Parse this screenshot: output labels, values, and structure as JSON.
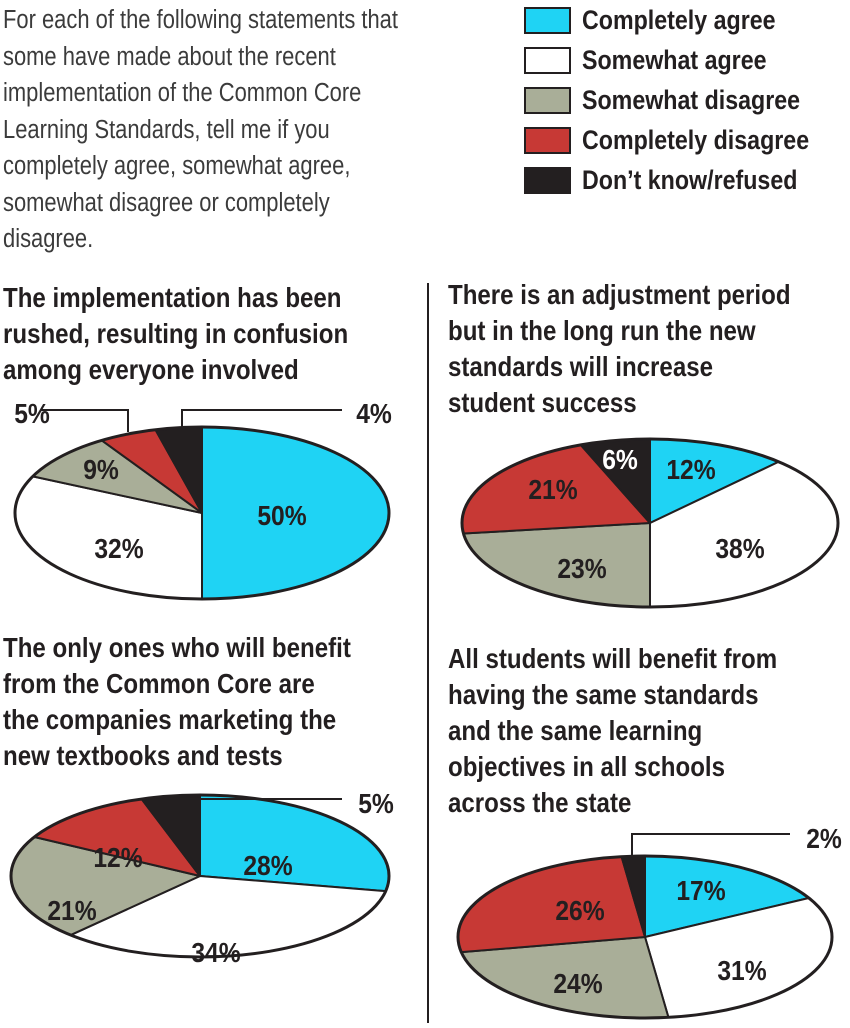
{
  "intro_lines": [
    "For each of the following statements that",
    "some have made about the recent",
    "implementation of the Common Core",
    "Learning Standards, tell me if you",
    "completely agree, somewhat agree,",
    "somewhat disagree or completely",
    "disagree."
  ],
  "legend": [
    {
      "label": "Completely agree",
      "color": "#1fd3f4"
    },
    {
      "label": "Somewhat agree",
      "color": "#ffffff"
    },
    {
      "label": "Somewhat disagree",
      "color": "#a9ae98"
    },
    {
      "label": "Completely disagree",
      "color": "#c73935"
    },
    {
      "label": "Don’t know/refused",
      "color": "#231f20"
    }
  ],
  "chart_data": [
    {
      "type": "pie",
      "title_lines": [
        "The implementation has been",
        "rushed, resulting in confusion",
        "among everyone involved"
      ],
      "categories": [
        "Completely agree",
        "Somewhat agree",
        "Somewhat disagree",
        "Completely disagree",
        "Don’t know/refused"
      ],
      "values": [
        50,
        32,
        9,
        5,
        4
      ],
      "labels": [
        "50%",
        "32%",
        "9%",
        "5%",
        "4%"
      ]
    },
    {
      "type": "pie",
      "title_lines": [
        "There is an adjustment period",
        "but in the long run the new",
        "standards will increase",
        "student success"
      ],
      "categories": [
        "Completely agree",
        "Somewhat agree",
        "Somewhat disagree",
        "Completely disagree",
        "Don’t know/refused"
      ],
      "values": [
        12,
        38,
        23,
        21,
        6
      ],
      "labels": [
        "12%",
        "38%",
        "23%",
        "21%",
        "6%"
      ]
    },
    {
      "type": "pie",
      "title_lines": [
        "The only ones who will benefit",
        "from the Common Core are",
        "the companies marketing the",
        "new textbooks and tests"
      ],
      "categories": [
        "Completely agree",
        "Somewhat agree",
        "Somewhat disagree",
        "Completely disagree",
        "Don’t know/refused"
      ],
      "values": [
        28,
        34,
        21,
        12,
        5
      ],
      "labels": [
        "28%",
        "34%",
        "21%",
        "12%",
        "5%"
      ]
    },
    {
      "type": "pie",
      "title_lines": [
        "All students will benefit from",
        "having the same standards",
        "and the same learning",
        "objectives in all schools",
        "across the state"
      ],
      "categories": [
        "Completely agree",
        "Somewhat agree",
        "Somewhat disagree",
        "Completely disagree",
        "Don’t know/refused"
      ],
      "values": [
        17,
        31,
        24,
        26,
        2
      ],
      "labels": [
        "17%",
        "31%",
        "24%",
        "26%",
        "2%"
      ]
    }
  ]
}
